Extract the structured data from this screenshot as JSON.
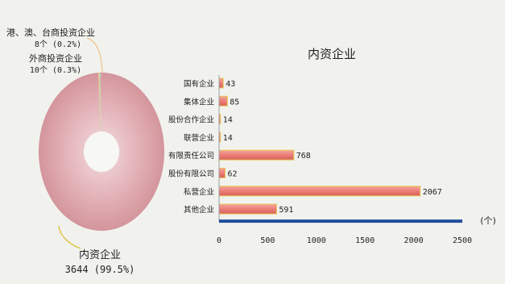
{
  "chart_data": [
    {
      "type": "pie",
      "title": "",
      "slices": [
        {
          "label": "内资企业",
          "value": 3644,
          "percent_text": "3644 (99.5%)",
          "color": "#d9a1a6"
        },
        {
          "label": "港、澳、台商投资企业",
          "value": 8,
          "percent_text": "8个 (0.2%)",
          "color": "#f0c48b"
        },
        {
          "label": "外商投资企业",
          "value": 10,
          "percent_text": "10个 (0.3%)",
          "color": "#b8d3b0"
        }
      ],
      "style": "donut"
    },
    {
      "type": "bar",
      "orientation": "horizontal",
      "title": "内资企业",
      "categories": [
        "国有企业",
        "集体企业",
        "股份合作企业",
        "联营企业",
        "有限责任公司",
        "股份有限公司",
        "私营企业",
        "其他企业"
      ],
      "values": [
        43,
        85,
        14,
        14,
        768,
        62,
        2067,
        591
      ],
      "xlim": [
        0,
        2500
      ],
      "xticks": [
        0,
        500,
        1000,
        1500,
        2000,
        2500
      ],
      "unit_label": "(个)",
      "bar_color": "#ee7f7a",
      "bar_edge_color": "#e5c84b",
      "axis_color": "#1f4f9b",
      "grid": false
    }
  ]
}
